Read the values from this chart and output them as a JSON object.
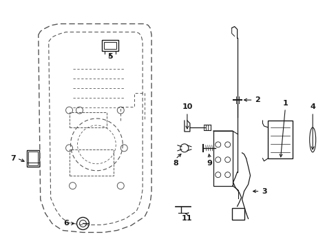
{
  "bg_color": "#ffffff",
  "line_color": "#1a1a1a",
  "dashed_color": "#555555",
  "figsize": [
    4.89,
    3.6
  ],
  "dpi": 100
}
